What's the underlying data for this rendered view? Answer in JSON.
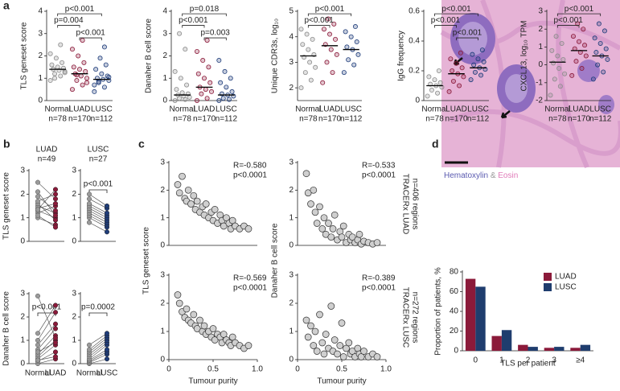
{
  "panel_labels": [
    "a",
    "b",
    "c",
    "d"
  ],
  "image": {
    "caption": [
      "Hematoxylin",
      "&",
      "Eosin"
    ]
  },
  "chart_data": [
    {
      "type": "dot",
      "ylabel": "TLS geneset score",
      "categories": [
        "Normal",
        "LUAD",
        "LUSC"
      ],
      "n_labels": [
        "n=78",
        "n=170",
        "n=112"
      ],
      "ylim": [
        0,
        4
      ],
      "yticks": [
        0,
        1,
        2,
        3,
        4
      ],
      "groups": [
        {
          "color": "#8c8c8c",
          "median": 1.4,
          "values": [
            0.9,
            1.1,
            1.2,
            1.3,
            1.35,
            1.4,
            1.45,
            1.5,
            1.6,
            1.7,
            1.9,
            2.1,
            2.5,
            1.0,
            1.25
          ]
        },
        {
          "color": "#8b1a3a",
          "median": 1.2,
          "values": [
            0.5,
            0.7,
            0.9,
            1.0,
            1.1,
            1.2,
            1.3,
            1.4,
            1.5,
            1.7,
            2.0,
            2.3,
            2.7,
            1.15,
            0.8
          ]
        },
        {
          "color": "#1f3d7a",
          "median": 0.95,
          "values": [
            0.4,
            0.6,
            0.8,
            0.9,
            0.95,
            1.0,
            1.1,
            1.2,
            1.4,
            1.6,
            1.9,
            0.7,
            2.4,
            0.85,
            1.05
          ]
        }
      ],
      "comparisons": [
        {
          "label": "p<0.001",
          "groups": [
            0,
            2
          ]
        },
        {
          "label": "p=0.004",
          "groups": [
            0,
            1
          ]
        },
        {
          "label": "p<0.001",
          "groups": [
            1,
            2
          ]
        }
      ]
    },
    {
      "type": "dot",
      "ylabel": "Danaher B cell score",
      "categories": [
        "Normal",
        "LUAD",
        "LUSC"
      ],
      "n_labels": [
        "n=78",
        "n=170",
        "n=112"
      ],
      "ylim": [
        0,
        4
      ],
      "yticks": [
        0,
        1,
        2,
        3,
        4
      ],
      "groups": [
        {
          "color": "#8c8c8c",
          "median": 0.25,
          "values": [
            0,
            0.05,
            0.1,
            0.15,
            0.2,
            0.25,
            0.3,
            0.35,
            0.5,
            0.7,
            1.0,
            1.3,
            2.3,
            3.0
          ]
        },
        {
          "color": "#8b1a3a",
          "median": 0.6,
          "values": [
            0,
            0.1,
            0.3,
            0.4,
            0.5,
            0.6,
            0.8,
            1.0,
            1.2,
            1.5,
            1.8,
            2.2,
            2.7
          ]
        },
        {
          "color": "#1f3d7a",
          "median": 0.25,
          "values": [
            0,
            0.05,
            0.1,
            0.2,
            0.25,
            0.3,
            0.4,
            0.6,
            0.8,
            1.0,
            1.3,
            1.8
          ]
        }
      ],
      "comparisons": [
        {
          "label": "p=0.018",
          "groups": [
            0,
            2
          ]
        },
        {
          "label": "p<0.001",
          "groups": [
            0,
            1
          ]
        },
        {
          "label": "p=0.003",
          "groups": [
            1,
            2
          ]
        }
      ]
    },
    {
      "type": "dot",
      "ylabel": "Unique CDR3s, log₁₀",
      "categories": [
        "Normal",
        "LUAD",
        "LUSC"
      ],
      "n_labels": [
        "n=78",
        "n=170",
        "n=112"
      ],
      "ylim": [
        1.5,
        5
      ],
      "yticks": [
        2,
        3,
        4,
        5
      ],
      "groups": [
        {
          "color": "#8c8c8c",
          "median": 3.25,
          "values": [
            2.0,
            2.3,
            2.6,
            2.8,
            3.0,
            3.2,
            3.3,
            3.5,
            3.7,
            3.9,
            4.1,
            4.3
          ]
        },
        {
          "color": "#8b1a3a",
          "median": 3.65,
          "values": [
            2.2,
            2.6,
            3.0,
            3.3,
            3.5,
            3.7,
            3.9,
            4.1,
            4.3,
            4.5,
            4.7
          ]
        },
        {
          "color": "#1f3d7a",
          "median": 3.5,
          "values": [
            2.6,
            2.9,
            3.1,
            3.3,
            3.5,
            3.6,
            3.8,
            4.0,
            4.2,
            4.4
          ]
        }
      ],
      "comparisons": [
        {
          "label": "p<0.001",
          "groups": [
            0,
            2
          ]
        },
        {
          "label": "p<0.001",
          "groups": [
            0,
            1
          ]
        }
      ]
    },
    {
      "type": "dot",
      "ylabel": "IgG frequency",
      "categories": [
        "Normal",
        "LUAD",
        "LUSC"
      ],
      "n_labels": [
        "n=78",
        "n=170",
        "n=112"
      ],
      "ylim": [
        0,
        0.6
      ],
      "yticks": [
        0,
        0.2,
        0.4,
        0.6
      ],
      "groups": [
        {
          "color": "#8c8c8c",
          "median": 0.1,
          "values": [
            0.03,
            0.05,
            0.07,
            0.09,
            0.1,
            0.11,
            0.12,
            0.14,
            0.16,
            0.2
          ]
        },
        {
          "color": "#8b1a3a",
          "median": 0.18,
          "values": [
            0.06,
            0.1,
            0.13,
            0.16,
            0.18,
            0.2,
            0.22,
            0.25,
            0.28,
            0.32
          ]
        },
        {
          "color": "#1f3d7a",
          "median": 0.22,
          "values": [
            0.14,
            0.17,
            0.19,
            0.21,
            0.22,
            0.24,
            0.26,
            0.28,
            0.31,
            0.34
          ]
        }
      ],
      "comparisons": [
        {
          "label": "p<0.001",
          "groups": [
            0,
            2
          ]
        },
        {
          "label": "p<0.001",
          "groups": [
            0,
            1
          ]
        },
        {
          "label": "p<0.001",
          "groups": [
            1,
            2
          ]
        }
      ]
    },
    {
      "type": "dot",
      "ylabel": "CXCL13, log₁₀ TPM",
      "categories": [
        "Normal",
        "LUAD",
        "LUSC"
      ],
      "n_labels": [
        "n=78",
        "n=170",
        "n=112"
      ],
      "ylim": [
        -2,
        3
      ],
      "yticks": [
        -2,
        -1,
        0,
        1,
        2,
        3
      ],
      "groups": [
        {
          "color": "#8c8c8c",
          "median": 0.15,
          "values": [
            -1.7,
            -1.2,
            -0.8,
            -0.5,
            -0.2,
            0.1,
            0.3,
            0.5,
            0.8,
            1.2,
            1.6
          ]
        },
        {
          "color": "#8b1a3a",
          "median": 0.8,
          "values": [
            -0.6,
            -0.2,
            0.2,
            0.5,
            0.7,
            0.9,
            1.1,
            1.3,
            1.6,
            2.0,
            2.3
          ]
        },
        {
          "color": "#1f3d7a",
          "median": 0.5,
          "values": [
            -0.8,
            -0.4,
            0,
            0.3,
            0.5,
            0.7,
            0.9,
            1.2,
            1.5,
            1.9,
            2.3
          ]
        }
      ],
      "comparisons": [
        {
          "label": "p<0.001",
          "groups": [
            0,
            2
          ]
        },
        {
          "label": "p<0.001",
          "groups": [
            0,
            1
          ]
        }
      ]
    },
    {
      "type": "paired",
      "title": "LUAD",
      "subtitle": "n=49",
      "ylabel": "TLS geneset score",
      "ylim": [
        0,
        3
      ],
      "yticks": [
        0,
        1,
        2,
        3
      ],
      "colors": [
        "#9a9a9a",
        "#8b1a3a"
      ],
      "before": [
        1.0,
        1.2,
        1.3,
        1.4,
        1.5,
        1.6,
        1.7,
        1.9,
        2.1,
        2.5,
        1.1,
        1.35
      ],
      "after": [
        0.7,
        1.5,
        1.0,
        1.6,
        1.2,
        0.9,
        2.0,
        1.3,
        1.1,
        1.8,
        0.6,
        2.2
      ]
    },
    {
      "type": "paired",
      "title": "LUSC",
      "subtitle": "n=27",
      "annotation": "p<0.001",
      "ylim": [
        0,
        3
      ],
      "yticks": [
        0,
        1,
        2,
        3
      ],
      "colors": [
        "#9a9a9a",
        "#1f3d7a"
      ],
      "before": [
        0.8,
        1.0,
        1.1,
        1.2,
        1.3,
        1.4,
        1.5,
        1.6,
        1.8,
        2.0
      ],
      "after": [
        0.4,
        0.6,
        0.7,
        0.8,
        0.9,
        1.0,
        1.1,
        1.2,
        1.4,
        1.5
      ]
    },
    {
      "type": "paired",
      "ylabel": "Danaher B cell score",
      "annotation": "p<0.001",
      "categories": [
        "Normal",
        "LUAD"
      ],
      "ylim": [
        0,
        3
      ],
      "yticks": [
        0,
        1,
        2,
        3
      ],
      "colors": [
        "#9a9a9a",
        "#8b1a3a"
      ],
      "before": [
        0,
        0.1,
        0.2,
        0.3,
        0.4,
        0.6,
        0.8,
        1.0,
        1.3,
        2.9,
        0.15,
        0.5
      ],
      "after": [
        0.2,
        0.5,
        0.8,
        1.0,
        1.2,
        1.5,
        1.7,
        2.2,
        2.5,
        1.1,
        0.3,
        0.9
      ]
    },
    {
      "type": "paired",
      "annotation": "p=0.0002",
      "categories": [
        "Normal",
        "LUSC"
      ],
      "ylim": [
        0,
        3
      ],
      "yticks": [
        0,
        1,
        2,
        3
      ],
      "colors": [
        "#9a9a9a",
        "#1f3d7a"
      ],
      "before": [
        0,
        0.05,
        0.1,
        0.15,
        0.2,
        0.3,
        0.4,
        0.5,
        0.6,
        0.8
      ],
      "after": [
        0.2,
        0.4,
        0.5,
        0.6,
        0.8,
        0.9,
        1.0,
        1.1,
        1.2,
        1.3
      ]
    },
    {
      "type": "scatter",
      "ylabel": "TLS geneset score",
      "annotation": [
        "R=-0.580",
        "p<0.0001"
      ],
      "xlim": [
        0,
        1
      ],
      "ylim": [
        0,
        3
      ],
      "yticks": [
        0,
        1,
        2,
        3
      ],
      "x": [
        0.1,
        0.12,
        0.15,
        0.18,
        0.2,
        0.22,
        0.25,
        0.28,
        0.3,
        0.32,
        0.35,
        0.38,
        0.4,
        0.42,
        0.45,
        0.48,
        0.5,
        0.52,
        0.55,
        0.58,
        0.6,
        0.62,
        0.65,
        0.68,
        0.7,
        0.72,
        0.75,
        0.8,
        0.85,
        0.9
      ],
      "y": [
        2.2,
        1.9,
        2.5,
        1.7,
        1.6,
        2.0,
        1.5,
        1.8,
        1.3,
        1.6,
        1.2,
        1.4,
        1.1,
        1.5,
        1.0,
        1.2,
        0.9,
        1.3,
        0.8,
        1.1,
        0.9,
        0.7,
        1.0,
        0.8,
        0.6,
        0.9,
        0.7,
        0.6,
        0.7,
        0.6
      ]
    },
    {
      "type": "scatter",
      "ylabel": "Danaher B cell score",
      "annotation": [
        "R=-0.533",
        "p<0.0001"
      ],
      "side_label": [
        "TRACERx LUAD",
        "n=406 regions"
      ],
      "xlim": [
        0,
        1
      ],
      "ylim": [
        0,
        3
      ],
      "yticks": [
        0,
        1,
        2,
        3
      ],
      "x": [
        0.1,
        0.12,
        0.15,
        0.18,
        0.2,
        0.22,
        0.25,
        0.28,
        0.3,
        0.32,
        0.35,
        0.38,
        0.4,
        0.42,
        0.45,
        0.48,
        0.5,
        0.52,
        0.55,
        0.58,
        0.6,
        0.62,
        0.65,
        0.68,
        0.7,
        0.72,
        0.75,
        0.8,
        0.85,
        0.9
      ],
      "y": [
        2.6,
        1.9,
        1.5,
        2.0,
        1.2,
        0.8,
        1.4,
        0.6,
        1.0,
        0.4,
        0.8,
        0.3,
        0.6,
        1.1,
        0.2,
        0.5,
        0.3,
        0.7,
        0.1,
        0.4,
        0.2,
        0.3,
        0.1,
        0.2,
        0.4,
        0.05,
        0.15,
        0.1,
        0.05,
        0.1
      ]
    },
    {
      "type": "scatter",
      "xlabel": "Tumour purity",
      "annotation": [
        "R=-0.569",
        "p<0.0001"
      ],
      "xlim": [
        0,
        1
      ],
      "xticks": [
        0,
        0.5,
        {
          "value": 1,
          "label": "1.0"
        }
      ],
      "ylim": [
        0,
        3
      ],
      "yticks": [
        0,
        1,
        2,
        3
      ],
      "x": [
        0.1,
        0.12,
        0.15,
        0.18,
        0.2,
        0.22,
        0.25,
        0.28,
        0.3,
        0.32,
        0.35,
        0.38,
        0.4,
        0.42,
        0.45,
        0.48,
        0.5,
        0.52,
        0.55,
        0.58,
        0.6,
        0.62,
        0.65,
        0.68,
        0.7,
        0.72,
        0.75,
        0.8,
        0.85,
        0.9
      ],
      "y": [
        2.3,
        2.0,
        1.7,
        1.5,
        1.8,
        1.4,
        1.3,
        1.6,
        1.2,
        1.1,
        1.4,
        1.0,
        1.2,
        0.9,
        1.0,
        0.8,
        1.1,
        0.7,
        0.9,
        0.8,
        0.6,
        0.9,
        0.7,
        0.6,
        0.5,
        0.8,
        0.6,
        0.5,
        0.4,
        0.5
      ]
    },
    {
      "type": "scatter",
      "xlabel": "Tumour purity",
      "annotation": [
        "R=-0.389",
        "p<0.0001"
      ],
      "side_label": [
        "TRACERx LUSC",
        "n=272 regions"
      ],
      "xlim": [
        0,
        1
      ],
      "xticks": [
        0,
        0.5,
        {
          "value": 1,
          "label": "1.0"
        }
      ],
      "ylim": [
        0,
        3
      ],
      "yticks": [
        0,
        1,
        2,
        3
      ],
      "x": [
        0.1,
        0.12,
        0.15,
        0.18,
        0.2,
        0.22,
        0.25,
        0.28,
        0.3,
        0.32,
        0.35,
        0.38,
        0.4,
        0.42,
        0.45,
        0.48,
        0.5,
        0.52,
        0.55,
        0.58,
        0.6,
        0.62,
        0.65,
        0.68,
        0.7,
        0.72,
        0.75,
        0.8,
        0.85,
        0.9
      ],
      "y": [
        1.4,
        0.8,
        1.2,
        0.5,
        1.0,
        0.3,
        1.6,
        0.6,
        0.2,
        0.9,
        0.4,
        1.9,
        0.3,
        0.7,
        0.2,
        0.5,
        1.3,
        0.1,
        0.4,
        0.6,
        0.2,
        0.3,
        0.1,
        0.4,
        0.2,
        0.1,
        0.3,
        0.1,
        0.2,
        0.1
      ]
    },
    {
      "type": "bar",
      "ylabel": "Proportion of patients, %",
      "xlabel": "TLS per patient",
      "categories": [
        "0",
        "1",
        "2",
        "3",
        "≥4"
      ],
      "ylim": [
        0,
        80
      ],
      "yticks": [
        0,
        20,
        40,
        60,
        80
      ],
      "legend": "upper right",
      "series": [
        {
          "name": "LUAD",
          "color": "#8b1a3a",
          "values": [
            73,
            15,
            6,
            3,
            3
          ]
        },
        {
          "name": "LUSC",
          "color": "#1f3d6e",
          "values": [
            65,
            21,
            4,
            4,
            6
          ]
        }
      ]
    }
  ]
}
